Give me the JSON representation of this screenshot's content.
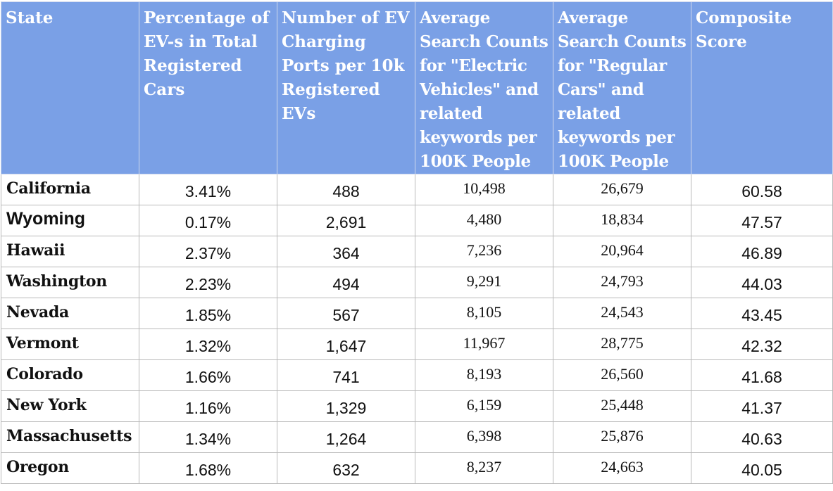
{
  "table": {
    "headers": [
      "State",
      "Percentage of EV-s in Total Registered Cars",
      "Number of EV Charging Ports per 10k Registered EVs",
      "Average Search Counts for \"Electric Vehicles\" and related keywords per 100K People",
      "Average Search Counts for \"Regular Cars\" and related keywords per 100K People",
      "Composite Score"
    ],
    "rows": [
      {
        "state": "California",
        "pct_ev": "3.41%",
        "ports": "488",
        "search_ev": "10,498",
        "search_regular": "26,679",
        "score": "60.58"
      },
      {
        "state": "Wyoming",
        "pct_ev": "0.17%",
        "ports": "2,691",
        "search_ev": "4,480",
        "search_regular": "18,834",
        "score": "47.57"
      },
      {
        "state": "Hawaii",
        "pct_ev": "2.37%",
        "ports": "364",
        "search_ev": "7,236",
        "search_regular": "20,964",
        "score": "46.89"
      },
      {
        "state": "Washington",
        "pct_ev": "2.23%",
        "ports": "494",
        "search_ev": "9,291",
        "search_regular": "24,793",
        "score": "44.03"
      },
      {
        "state": "Nevada",
        "pct_ev": "1.85%",
        "ports": "567",
        "search_ev": "8,105",
        "search_regular": "24,543",
        "score": "43.45"
      },
      {
        "state": "Vermont",
        "pct_ev": "1.32%",
        "ports": "1,647",
        "search_ev": "11,967",
        "search_regular": "28,775",
        "score": "42.32"
      },
      {
        "state": "Colorado",
        "pct_ev": "1.66%",
        "ports": "741",
        "search_ev": "8,193",
        "search_regular": "26,560",
        "score": "41.68"
      },
      {
        "state": "New York",
        "pct_ev": "1.16%",
        "ports": "1,329",
        "search_ev": "6,159",
        "search_regular": "25,448",
        "score": "41.37"
      },
      {
        "state": "Massachusetts",
        "pct_ev": "1.34%",
        "ports": "1,264",
        "search_ev": "6,398",
        "search_regular": "25,876",
        "score": "40.63"
      },
      {
        "state": "Oregon",
        "pct_ev": "1.68%",
        "ports": "632",
        "search_ev": "8,237",
        "search_regular": "24,663",
        "score": "40.05"
      }
    ],
    "colors": {
      "header_background": "#7aa0e6",
      "header_text": "#ffffff",
      "cell_border": "#b9b9b9"
    }
  }
}
